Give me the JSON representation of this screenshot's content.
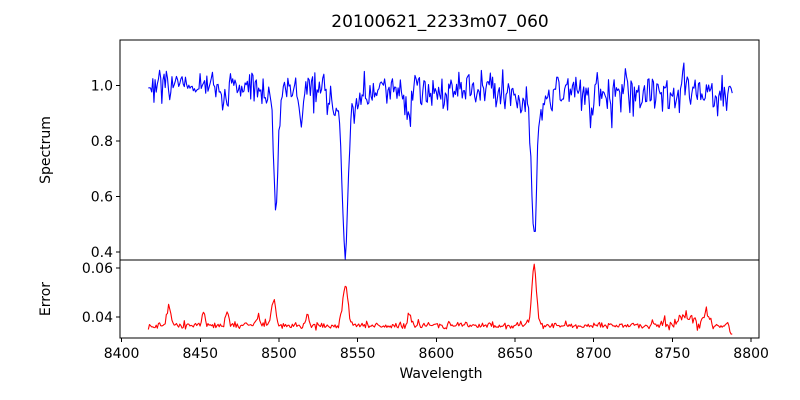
{
  "chart_data": {
    "type": "line",
    "title": "20100621_2233m07_060",
    "xlabel": "Wavelength",
    "xlim": [
      8399,
      8805
    ],
    "xticks": [
      8400,
      8450,
      8500,
      8550,
      8600,
      8650,
      8700,
      8750,
      8800
    ],
    "grid": false,
    "legend": "none",
    "background_color": "#ffffff",
    "panels": [
      {
        "name": "spectrum",
        "ylabel": "Spectrum",
        "ylim": [
          0.371,
          1.163
        ],
        "yticks": [
          0.4,
          0.6,
          0.8,
          1.0
        ],
        "tick_decimals": 1,
        "line_color": "#0000ff"
      },
      {
        "name": "error",
        "ylabel": "Error",
        "ylim": [
          0.0314,
          0.0633
        ],
        "yticks": [
          0.04,
          0.06
        ],
        "tick_decimals": 2,
        "line_color": "#ff0000"
      }
    ],
    "key_points": {
      "spectrum_continuum_level": 1.0,
      "spectrum_absorption_minima": [
        [
          8498,
          0.56
        ],
        [
          8542,
          0.42
        ],
        [
          8662,
          0.45
        ]
      ],
      "error_baseline": 0.037,
      "error_peaks": [
        [
          8430,
          0.045
        ],
        [
          8497,
          0.048
        ],
        [
          8542,
          0.054
        ],
        [
          8662,
          0.062
        ]
      ],
      "data_x_range": [
        8417,
        8788
      ]
    },
    "spectrum_model": {
      "seed": 7,
      "n_points": 520,
      "x_start": 8417,
      "x_end": 8788,
      "continuum_start": 1.0,
      "continuum_end": 0.97,
      "noise_sigma_start": 0.021,
      "noise_sigma_end": 0.042,
      "spike_prob": 0.06,
      "spike_scale": 0.13,
      "absorption_lines": [
        {
          "center": 8498.0,
          "depth": 0.38,
          "width": 1.3
        },
        {
          "center": 8498.0,
          "depth": 0.05,
          "width": 5.0
        },
        {
          "center": 8542.1,
          "depth": 0.5,
          "width": 1.7
        },
        {
          "center": 8542.1,
          "depth": 0.09,
          "width": 7.0
        },
        {
          "center": 8662.1,
          "depth": 0.46,
          "width": 1.5
        },
        {
          "center": 8662.1,
          "depth": 0.07,
          "width": 6.0
        },
        {
          "center": 8466.0,
          "depth": 0.07,
          "width": 1.5
        },
        {
          "center": 8514.0,
          "depth": 0.12,
          "width": 1.5
        },
        {
          "center": 8582.0,
          "depth": 0.08,
          "width": 1.5
        },
        {
          "center": 8698.0,
          "depth": 0.08,
          "width": 1.5
        }
      ]
    },
    "error_model": {
      "seed": 13,
      "n_points": 520,
      "x_start": 8417,
      "x_end": 8788,
      "baseline": 0.0365,
      "noise_sigma": 0.0006,
      "bump_prob": 0.08,
      "bump_scale": 0.002,
      "right_noise_start": 8735,
      "right_noise_factor": 2.0,
      "last_point_value": 0.033,
      "peaks": [
        {
          "center": 8430.0,
          "amp": 0.008,
          "width": 1.2
        },
        {
          "center": 8452.0,
          "amp": 0.006,
          "width": 0.9
        },
        {
          "center": 8467.0,
          "amp": 0.0065,
          "width": 1.0
        },
        {
          "center": 8487.0,
          "amp": 0.004,
          "width": 1.0
        },
        {
          "center": 8496.5,
          "amp": 0.0105,
          "width": 1.3
        },
        {
          "center": 8518.0,
          "amp": 0.0045,
          "width": 0.9
        },
        {
          "center": 8542.1,
          "amp": 0.0165,
          "width": 1.6
        },
        {
          "center": 8583.0,
          "amp": 0.0035,
          "width": 1.0
        },
        {
          "center": 8662.1,
          "amp": 0.025,
          "width": 1.4
        },
        {
          "center": 8757.0,
          "amp": 0.004,
          "width": 4.0
        },
        {
          "center": 8772.0,
          "amp": 0.006,
          "width": 2.0
        }
      ]
    }
  }
}
